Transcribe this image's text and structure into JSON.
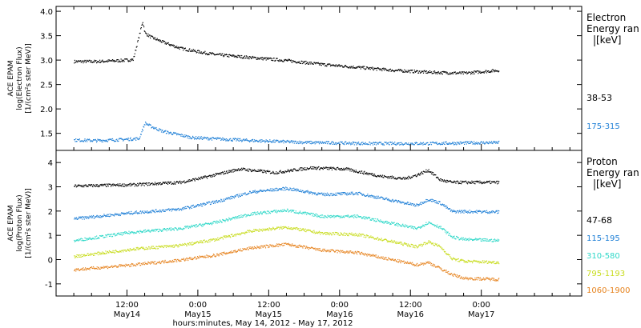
{
  "chart_data": [
    {
      "type": "scatter",
      "panel": "electron",
      "ylabel_lines": [
        "ACE EPAM",
        "log(Electron Flux)",
        "[1/(cm²s ster MeV)]"
      ],
      "ylim": [
        1.15,
        4.1
      ],
      "yticks": [
        1.5,
        2.0,
        2.5,
        3.0,
        3.5,
        4.0
      ],
      "ytick_labels": [
        "1.5",
        "2.0",
        "2.5",
        "3.0",
        "3.5",
        "4.0"
      ],
      "legend_title_lines": [
        "Electron",
        "Energy ran",
        "[keV]"
      ],
      "series": [
        {
          "name": "38-53",
          "color": "#000000",
          "x": [
            0,
            4,
            8,
            10,
            11,
            11.6,
            12,
            13,
            15,
            18,
            21,
            24,
            30,
            36,
            42,
            48,
            54,
            60,
            66,
            72
          ],
          "values": [
            2.98,
            2.98,
            3.0,
            3.02,
            3.5,
            3.8,
            3.56,
            3.48,
            3.38,
            3.25,
            3.18,
            3.12,
            3.06,
            3.0,
            2.92,
            2.86,
            2.8,
            2.76,
            2.74,
            2.8
          ]
        },
        {
          "name": "175-315",
          "color": "#1e7fd6",
          "x": [
            0,
            4,
            8,
            11,
            12,
            13,
            15,
            20,
            30,
            40,
            50,
            60,
            72
          ],
          "values": [
            1.37,
            1.36,
            1.38,
            1.4,
            1.72,
            1.65,
            1.55,
            1.42,
            1.36,
            1.32,
            1.3,
            1.3,
            1.32
          ]
        }
      ]
    },
    {
      "type": "scatter",
      "panel": "proton",
      "ylabel_lines": [
        "ACE EPAM",
        "log(Proton Flux)",
        "[1/(cm²s ster MeV)]"
      ],
      "ylim": [
        -1.5,
        4.5
      ],
      "yticks": [
        -1,
        0,
        1,
        2,
        3,
        4
      ],
      "ytick_labels": [
        "-1",
        "0",
        "1",
        "2",
        "3",
        "4"
      ],
      "legend_title_lines": [
        "Proton",
        "Energy ran",
        "[keV]"
      ],
      "series": [
        {
          "name": "47-68",
          "color": "#000000",
          "x": [
            0,
            10,
            18,
            22,
            28,
            34,
            40,
            46,
            52,
            56,
            58,
            60,
            62,
            64,
            66,
            72
          ],
          "values": [
            3.05,
            3.1,
            3.2,
            3.4,
            3.75,
            3.6,
            3.8,
            3.75,
            3.45,
            3.35,
            3.5,
            3.7,
            3.3,
            3.2,
            3.2,
            3.2
          ]
        },
        {
          "name": "115-195",
          "color": "#1e7fd6",
          "x": [
            0,
            10,
            18,
            24,
            30,
            36,
            42,
            48,
            54,
            58,
            60,
            62,
            64,
            66,
            72
          ],
          "values": [
            1.7,
            1.95,
            2.1,
            2.4,
            2.8,
            2.95,
            2.7,
            2.75,
            2.45,
            2.25,
            2.5,
            2.35,
            2.0,
            2.0,
            1.98
          ]
        },
        {
          "name": "310-580",
          "color": "#2fd8c8",
          "x": [
            0,
            10,
            18,
            24,
            30,
            36,
            42,
            48,
            54,
            58,
            60,
            62,
            64,
            66,
            72
          ],
          "values": [
            0.8,
            1.15,
            1.3,
            1.55,
            1.9,
            2.05,
            1.8,
            1.8,
            1.5,
            1.3,
            1.55,
            1.35,
            0.95,
            0.85,
            0.8
          ]
        },
        {
          "name": "795-1193",
          "color": "#c8dc1e",
          "x": [
            0,
            10,
            18,
            24,
            30,
            36,
            42,
            48,
            54,
            58,
            60,
            62,
            64,
            66,
            72
          ],
          "values": [
            0.15,
            0.45,
            0.6,
            0.85,
            1.2,
            1.35,
            1.1,
            1.05,
            0.75,
            0.55,
            0.75,
            0.55,
            0.05,
            -0.05,
            -0.1
          ]
        },
        {
          "name": "1060-1900",
          "color": "#e6831e",
          "x": [
            0,
            10,
            18,
            24,
            30,
            36,
            42,
            48,
            54,
            58,
            60,
            62,
            64,
            66,
            72
          ],
          "values": [
            -0.4,
            -0.2,
            0.0,
            0.2,
            0.5,
            0.65,
            0.4,
            0.3,
            0.0,
            -0.2,
            -0.1,
            -0.35,
            -0.6,
            -0.75,
            -0.8
          ]
        }
      ]
    }
  ],
  "x_axis": {
    "xlim": [
      -3,
      86
    ],
    "major_ticks": [
      9,
      21,
      33,
      45,
      57,
      69
    ],
    "tick_time_labels": [
      "12:00",
      "0:00",
      "12:00",
      "0:00",
      "12:00",
      "0:00"
    ],
    "tick_date_labels": [
      "May14",
      "May15",
      "May15",
      "May16",
      "May16",
      "May17"
    ],
    "xlabel": "hours:minutes, May 14, 2012 - May 17, 2012"
  }
}
